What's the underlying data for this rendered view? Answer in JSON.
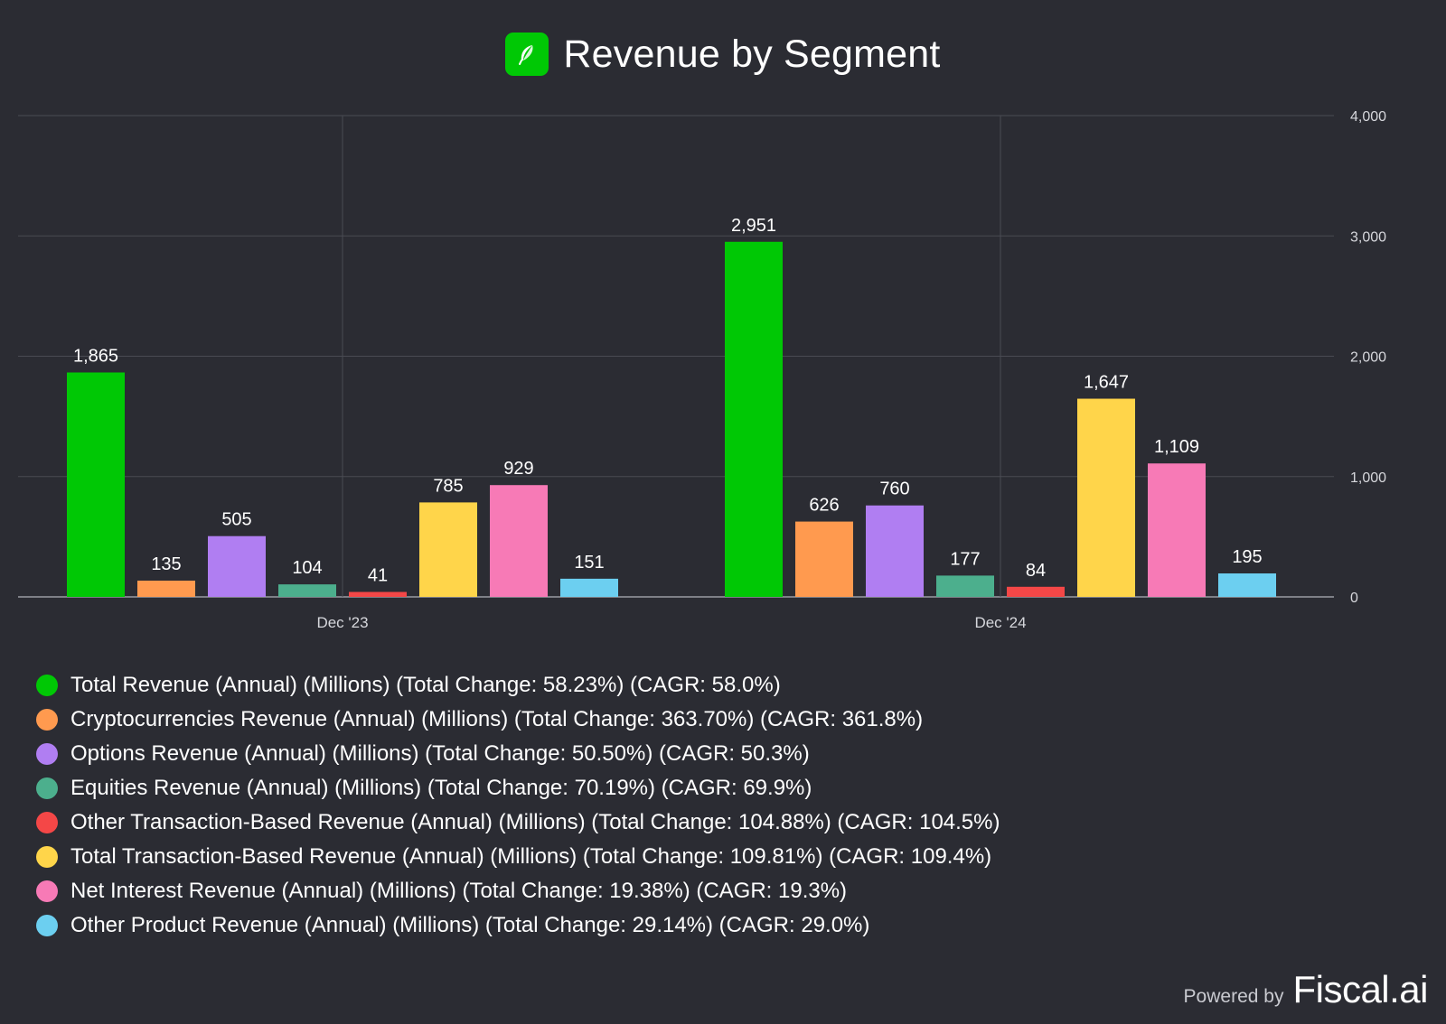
{
  "title": "Revenue by Segment",
  "logo": {
    "icon": "feather-icon",
    "color": "#00c805"
  },
  "footer": {
    "powered_by": "Powered by",
    "brand": "Fiscal.ai"
  },
  "colors": {
    "background": "#2b2c33",
    "grid": "#4a4b53",
    "axis_text": "#d6d7dc"
  },
  "chart_data": {
    "type": "bar",
    "categories": [
      "Dec '23",
      "Dec '24"
    ],
    "ylim": [
      0,
      4000
    ],
    "yticks": [
      0,
      1000,
      2000,
      3000,
      4000
    ],
    "ytick_labels": [
      "0",
      "1,000",
      "2,000",
      "3,000",
      "4,000"
    ],
    "grid": true,
    "y_axis_position": "right",
    "legend_position": "bottom",
    "series": [
      {
        "name": "Total Revenue (Annual) (Millions) (Total Change: 58.23%) (CAGR: 58.0%)",
        "color": "#00c805",
        "values": [
          1865,
          2951
        ],
        "labels": [
          "1,865",
          "2,951"
        ]
      },
      {
        "name": "Cryptocurrencies Revenue (Annual) (Millions) (Total Change: 363.70%) (CAGR: 361.8%)",
        "color": "#ff9a4f",
        "values": [
          135,
          626
        ],
        "labels": [
          "135",
          "626"
        ]
      },
      {
        "name": "Options Revenue (Annual) (Millions) (Total Change: 50.50%) (CAGR: 50.3%)",
        "color": "#b07ef2",
        "values": [
          505,
          760
        ],
        "labels": [
          "505",
          "760"
        ]
      },
      {
        "name": "Equities Revenue (Annual) (Millions) (Total Change: 70.19%) (CAGR: 69.9%)",
        "color": "#4caf8d",
        "values": [
          104,
          177
        ],
        "labels": [
          "104",
          "177"
        ]
      },
      {
        "name": "Other Transaction-Based Revenue (Annual) (Millions) (Total Change: 104.88%) (CAGR: 104.5%)",
        "color": "#f44747",
        "values": [
          41,
          84
        ],
        "labels": [
          "41",
          "84"
        ]
      },
      {
        "name": "Total Transaction-Based Revenue (Annual) (Millions) (Total Change: 109.81%) (CAGR: 109.4%)",
        "color": "#ffd54a",
        "values": [
          785,
          1647
        ],
        "labels": [
          "785",
          "1,647"
        ]
      },
      {
        "name": "Net Interest Revenue (Annual) (Millions) (Total Change: 19.38%) (CAGR: 19.3%)",
        "color": "#f77ab6",
        "values": [
          929,
          1109
        ],
        "labels": [
          "929",
          "1,109"
        ]
      },
      {
        "name": "Other Product Revenue (Annual) (Millions) (Total Change: 29.14%) (CAGR: 29.0%)",
        "color": "#6ccff0",
        "values": [
          151,
          195
        ],
        "labels": [
          "151",
          "195"
        ]
      }
    ]
  }
}
